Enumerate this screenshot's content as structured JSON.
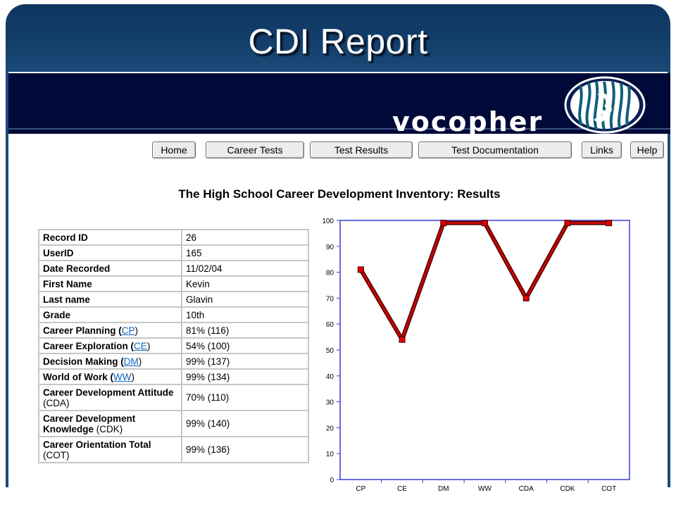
{
  "slide": {
    "title": "CDI Report"
  },
  "header": {
    "brand": "vocopher"
  },
  "nav": [
    {
      "label": "Home"
    },
    {
      "label": "Career Tests"
    },
    {
      "label": "Test Results"
    },
    {
      "label": "Test Documentation"
    },
    {
      "label": "Links"
    },
    {
      "label": "Help"
    }
  ],
  "page": {
    "results_title": "The High School Career Development Inventory: Results"
  },
  "table": {
    "rows": [
      {
        "label": "Record ID",
        "value": "26"
      },
      {
        "label": "UserID",
        "value": "165"
      },
      {
        "label": "Date Recorded",
        "value": "11/02/04"
      },
      {
        "label": "First Name",
        "value": "Kevin"
      },
      {
        "label": "Last name",
        "value": "Glavin"
      },
      {
        "label": "Grade",
        "value": "10th"
      },
      {
        "label": "Career Planning (",
        "link": "CP",
        "suffix": ")",
        "value": "81% (116)"
      },
      {
        "label": "Career Exploration (",
        "link": "CE",
        "suffix": ")",
        "value": "54% (100)"
      },
      {
        "label": "Decision Making (",
        "link": "DM",
        "suffix": ")",
        "value": "99% (137)"
      },
      {
        "label": "World of Work (",
        "link": "WW",
        "suffix": ")",
        "value": "99% (134)"
      },
      {
        "label": "Career Development Attitude",
        "plain": "(CDA)",
        "value": "70% (110)"
      },
      {
        "label": "Career Development Knowledge",
        "plain": "(CDK)",
        "value": "99% (140)"
      },
      {
        "label": "Career Orientation Total",
        "plain": "(COT)",
        "value": "99% (136)"
      }
    ]
  },
  "chart_data": {
    "type": "line",
    "title": "",
    "xlabel": "",
    "ylabel": "",
    "categories": [
      "CP",
      "CE",
      "DM",
      "WW",
      "CDA",
      "CDK",
      "COT"
    ],
    "series": [
      {
        "values": [
          81,
          54,
          99,
          99,
          70,
          99,
          99
        ]
      }
    ],
    "ylim": [
      0,
      100
    ],
    "yticks": [
      0,
      10,
      20,
      30,
      40,
      50,
      60,
      70,
      80,
      90,
      100
    ],
    "grid": false,
    "line_color": "#cc0000",
    "frame_color": "#3b3bd9"
  }
}
